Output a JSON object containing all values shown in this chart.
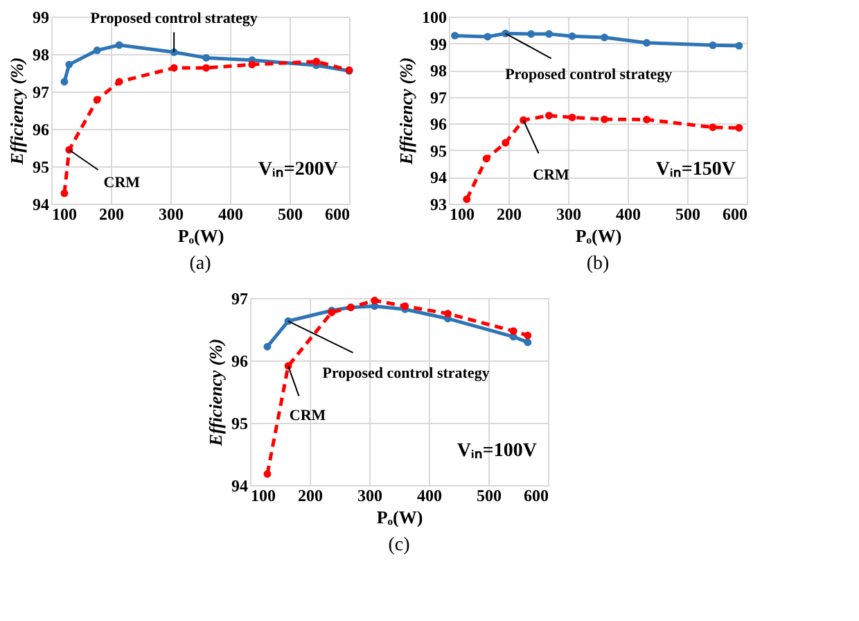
{
  "chart_data": [
    {
      "type": "line",
      "xlabel": "Pₒ(W)",
      "ylabel": "Efficiency (%)",
      "xlim": [
        100,
        600
      ],
      "xticks": [
        100,
        200,
        300,
        400,
        500,
        600
      ],
      "ylim": [
        94,
        99
      ],
      "yticks": [
        94,
        95,
        96,
        97,
        98,
        99
      ],
      "grid": true,
      "marker": "circle",
      "annotations": [
        "Vᵢₙ=200V",
        "(a)"
      ],
      "series": [
        {
          "name": "Proposed control strategy",
          "color": "#2e75b6",
          "line_style": "solid",
          "x": [
            122,
            130,
            177,
            214,
            306,
            360,
            437,
            545,
            600
          ],
          "values": [
            97.26,
            97.72,
            98.1,
            98.24,
            98.05,
            97.9,
            97.84,
            97.7,
            97.55
          ]
        },
        {
          "name": "CRM",
          "color": "#ff0000",
          "line_style": "dashed",
          "x": [
            122,
            130,
            177,
            214,
            306,
            360,
            437,
            545,
            600
          ],
          "values": [
            94.28,
            95.44,
            96.78,
            97.26,
            97.63,
            97.63,
            97.72,
            97.8,
            97.57
          ]
        }
      ]
    },
    {
      "type": "line",
      "xlabel": "Pₒ(W)",
      "ylabel": "Efficiency (%)",
      "xlim": [
        100,
        600
      ],
      "xticks": [
        100,
        200,
        300,
        400,
        500,
        600
      ],
      "ylim": [
        93,
        100
      ],
      "yticks": [
        93,
        94,
        95,
        96,
        97,
        98,
        99,
        100
      ],
      "grid": true,
      "marker": "circle",
      "annotations": [
        "Vᵢₙ=150V",
        "(b)"
      ],
      "series": [
        {
          "name": "Proposed control strategy",
          "color": "#2e75b6",
          "line_style": "solid",
          "x": [
            110,
            165,
            195,
            238,
            268,
            307,
            361,
            432,
            543,
            587
          ],
          "values": [
            99.29,
            99.25,
            99.37,
            99.35,
            99.35,
            99.27,
            99.22,
            99.02,
            98.93,
            98.91
          ]
        },
        {
          "name": "CRM",
          "color": "#ff0000",
          "line_style": "dashed",
          "x": [
            130,
            163,
            195,
            225,
            268,
            307,
            361,
            432,
            543,
            587
          ],
          "values": [
            93.17,
            94.69,
            95.28,
            96.13,
            96.3,
            96.23,
            96.16,
            96.15,
            95.86,
            95.84
          ]
        }
      ]
    },
    {
      "type": "line",
      "xlabel": "Pₒ(W)",
      "ylabel": "Efficiency (%)",
      "xlim": [
        100,
        600
      ],
      "xticks": [
        100,
        200,
        300,
        400,
        500,
        600
      ],
      "ylim": [
        94,
        97
      ],
      "yticks": [
        94,
        95,
        96,
        97
      ],
      "grid": true,
      "marker": "circle",
      "annotations": [
        "Vᵢₙ=100V",
        "(c)"
      ],
      "series": [
        {
          "name": "Proposed control strategy",
          "color": "#2e75b6",
          "line_style": "solid",
          "x": [
            129,
            164,
            237,
            269,
            309,
            360,
            432,
            542,
            566
          ],
          "values": [
            96.22,
            96.63,
            96.8,
            96.85,
            96.87,
            96.82,
            96.67,
            96.38,
            96.29
          ]
        },
        {
          "name": "CRM",
          "color": "#ff0000",
          "line_style": "dashed",
          "x": [
            129,
            164,
            237,
            269,
            309,
            360,
            432,
            542,
            566
          ],
          "values": [
            94.18,
            95.91,
            96.77,
            96.85,
            96.96,
            96.87,
            96.75,
            96.47,
            96.4
          ]
        }
      ]
    }
  ]
}
